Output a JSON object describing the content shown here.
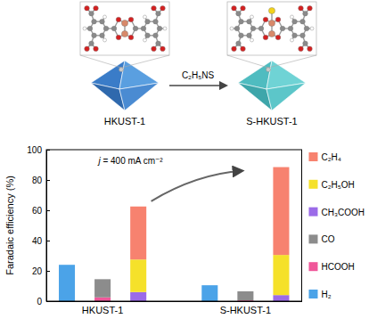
{
  "diagram": {
    "arrow_label": "C₂H₅NS",
    "nodes": [
      {
        "label": "HKUST-1"
      },
      {
        "label": "S-HKUST-1"
      }
    ]
  },
  "chart_data": {
    "type": "bar",
    "stacked": true,
    "ylabel": "Faradaic efficiency (%)",
    "annotation": "j = 400 mA cm⁻²",
    "categories": [
      null,
      "HKUST-1",
      null,
      null,
      null,
      "S-HKUST-1",
      null
    ],
    "series": [
      {
        "name": "C₂H₄",
        "color": "#f7826f",
        "values": [
          null,
          null,
          35,
          null,
          null,
          null,
          58
        ]
      },
      {
        "name": "C₂H₅OH",
        "color": "#f5e12a",
        "values": [
          null,
          null,
          21.5,
          null,
          null,
          null,
          26.5
        ]
      },
      {
        "name": "CH₃COOH",
        "color": "#9b6be8",
        "values": [
          null,
          null,
          6,
          null,
          null,
          null,
          4
        ]
      },
      {
        "name": "CO",
        "color": "#8c8c8c",
        "values": [
          null,
          12,
          null,
          null,
          null,
          6,
          null
        ]
      },
      {
        "name": "HCOOH",
        "color": "#f0579a",
        "values": [
          null,
          2.5,
          null,
          null,
          null,
          0.5,
          null
        ]
      },
      {
        "name": "H₂",
        "color": "#4ba3e8",
        "values": [
          24,
          null,
          null,
          null,
          10.5,
          null,
          null
        ]
      }
    ],
    "ylim": [
      0,
      100
    ],
    "yticks": [
      0,
      20,
      40,
      60,
      80,
      100
    ],
    "legend": "right"
  }
}
